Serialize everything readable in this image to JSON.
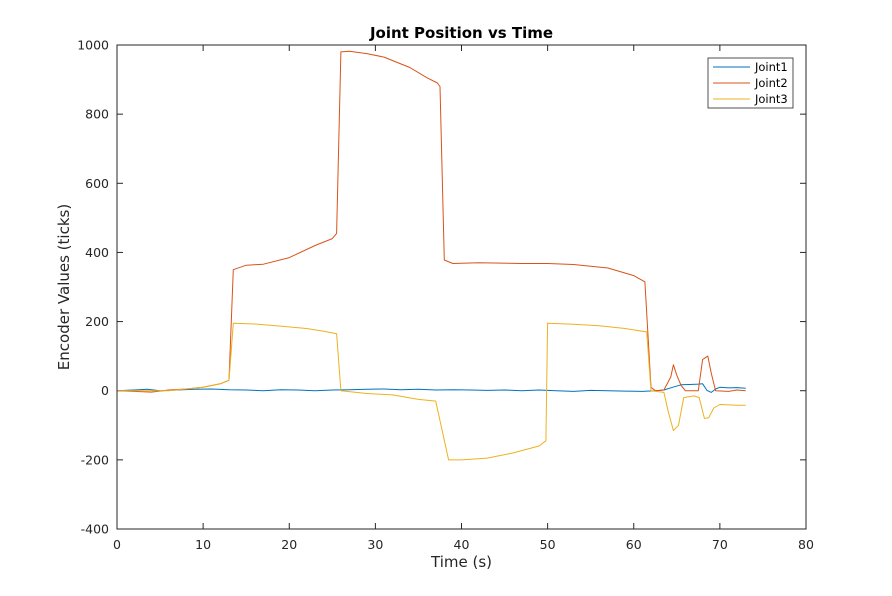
{
  "chart_data": {
    "type": "line",
    "title": "Joint Position vs Time",
    "xlabel": "Time (s)",
    "ylabel": "Encoder Values (ticks)",
    "xlim": [
      0,
      80
    ],
    "ylim": [
      -400,
      1000
    ],
    "xticks": [
      0,
      10,
      20,
      30,
      40,
      50,
      60,
      70,
      80
    ],
    "yticks": [
      -400,
      -200,
      0,
      200,
      400,
      600,
      800,
      1000
    ],
    "grid": false,
    "legend_position": "top-right",
    "series": [
      {
        "name": "Joint1",
        "color": "#0072BD",
        "points": [
          [
            0,
            0
          ],
          [
            2,
            2
          ],
          [
            3.5,
            4
          ],
          [
            5,
            0
          ],
          [
            7,
            2
          ],
          [
            9,
            4
          ],
          [
            11,
            5
          ],
          [
            13,
            3
          ],
          [
            15,
            2
          ],
          [
            17,
            0
          ],
          [
            19,
            3
          ],
          [
            21,
            2
          ],
          [
            23,
            0
          ],
          [
            25,
            2
          ],
          [
            27,
            3
          ],
          [
            29,
            4
          ],
          [
            31,
            5
          ],
          [
            33,
            3
          ],
          [
            35,
            4
          ],
          [
            37,
            2
          ],
          [
            39,
            3
          ],
          [
            41,
            2
          ],
          [
            43,
            1
          ],
          [
            45,
            2
          ],
          [
            47,
            0
          ],
          [
            49,
            2
          ],
          [
            51,
            0
          ],
          [
            53,
            -2
          ],
          [
            55,
            1
          ],
          [
            57,
            0
          ],
          [
            59,
            -1
          ],
          [
            61,
            -2
          ],
          [
            62.5,
            0
          ],
          [
            63.5,
            2
          ],
          [
            64.5,
            10
          ],
          [
            65.5,
            17
          ],
          [
            66.5,
            18
          ],
          [
            67.5,
            19
          ],
          [
            68,
            20
          ],
          [
            68.5,
            1
          ],
          [
            69,
            -5
          ],
          [
            69.5,
            5
          ],
          [
            70,
            10
          ],
          [
            71,
            8
          ],
          [
            72,
            9
          ],
          [
            73,
            7
          ]
        ]
      },
      {
        "name": "Joint2",
        "color": "#D95319",
        "points": [
          [
            0,
            0
          ],
          [
            2,
            -2
          ],
          [
            4,
            -4
          ],
          [
            6,
            2
          ],
          [
            8,
            5
          ],
          [
            10,
            10
          ],
          [
            12,
            20
          ],
          [
            13,
            30
          ],
          [
            13.5,
            350
          ],
          [
            15,
            363
          ],
          [
            17,
            366
          ],
          [
            20,
            385
          ],
          [
            23,
            420
          ],
          [
            25,
            440
          ],
          [
            25.5,
            455
          ],
          [
            26,
            980
          ],
          [
            27,
            982
          ],
          [
            29,
            975
          ],
          [
            31,
            965
          ],
          [
            34,
            935
          ],
          [
            36,
            905
          ],
          [
            37.2,
            890
          ],
          [
            37.5,
            880
          ],
          [
            38,
            378
          ],
          [
            39,
            368
          ],
          [
            42,
            370
          ],
          [
            47,
            368
          ],
          [
            50,
            368
          ],
          [
            53,
            365
          ],
          [
            57,
            355
          ],
          [
            60,
            333
          ],
          [
            61.3,
            315
          ],
          [
            62,
            10
          ],
          [
            62.5,
            0
          ],
          [
            63.5,
            2
          ],
          [
            64.3,
            40
          ],
          [
            64.6,
            75
          ],
          [
            65,
            45
          ],
          [
            65.5,
            15
          ],
          [
            66,
            0
          ],
          [
            67.5,
            0
          ],
          [
            68,
            90
          ],
          [
            68.6,
            100
          ],
          [
            69,
            50
          ],
          [
            69.5,
            0
          ],
          [
            71,
            -2
          ],
          [
            72,
            2
          ],
          [
            73,
            0
          ]
        ]
      },
      {
        "name": "Joint3",
        "color": "#EDB120",
        "points": [
          [
            0,
            0
          ],
          [
            2,
            0
          ],
          [
            4,
            0
          ],
          [
            6,
            0
          ],
          [
            8,
            5
          ],
          [
            10,
            10
          ],
          [
            12,
            20
          ],
          [
            13,
            30
          ],
          [
            13.5,
            195
          ],
          [
            16,
            193
          ],
          [
            19,
            187
          ],
          [
            22,
            180
          ],
          [
            24,
            172
          ],
          [
            25.5,
            165
          ],
          [
            26,
            0
          ],
          [
            29,
            -8
          ],
          [
            32,
            -12
          ],
          [
            35,
            -25
          ],
          [
            37,
            -30
          ],
          [
            38.5,
            -200
          ],
          [
            40,
            -200
          ],
          [
            43,
            -195
          ],
          [
            46,
            -180
          ],
          [
            49,
            -160
          ],
          [
            49.8,
            -145
          ],
          [
            50,
            195
          ],
          [
            53,
            192
          ],
          [
            56,
            188
          ],
          [
            59,
            180
          ],
          [
            61.5,
            170
          ],
          [
            62,
            0
          ],
          [
            63.5,
            -5
          ],
          [
            64,
            -60
          ],
          [
            64.6,
            -115
          ],
          [
            65.2,
            -100
          ],
          [
            65.8,
            -20
          ],
          [
            67,
            -15
          ],
          [
            67.6,
            -20
          ],
          [
            68.2,
            -80
          ],
          [
            68.7,
            -78
          ],
          [
            69.3,
            -50
          ],
          [
            70,
            -40
          ],
          [
            72,
            -42
          ],
          [
            73,
            -42
          ]
        ]
      }
    ]
  }
}
